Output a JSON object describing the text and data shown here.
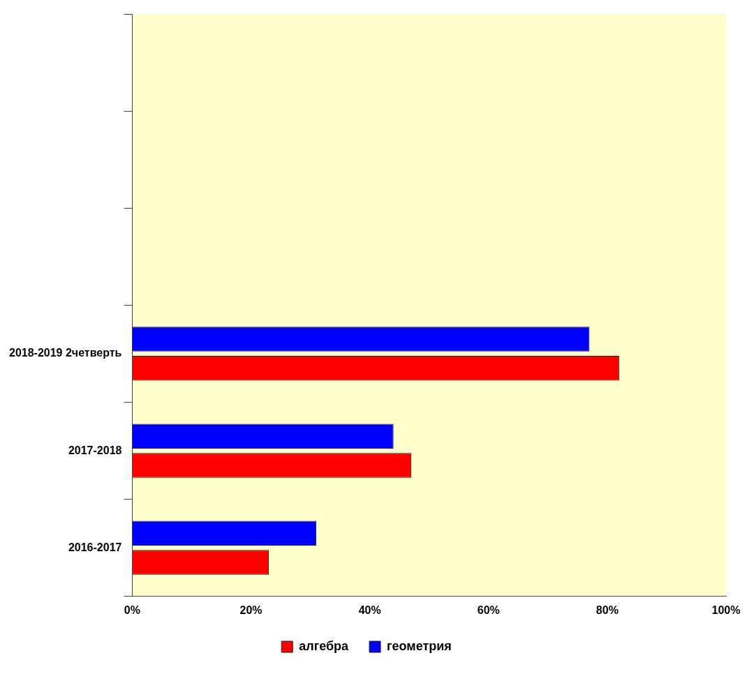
{
  "chart_data": {
    "type": "bar",
    "orientation": "horizontal",
    "categories": [
      null,
      null,
      null,
      "2018-2019 2четверть",
      "2017-2018",
      "2016-2017"
    ],
    "series": [
      {
        "name": "алгебра",
        "color": "#ff0000",
        "values": [
          null,
          null,
          null,
          82,
          47,
          23
        ]
      },
      {
        "name": "геометрия",
        "color": "#0000ff",
        "values": [
          null,
          null,
          null,
          77,
          44,
          31
        ]
      }
    ],
    "xlim": [
      0,
      100
    ],
    "xticks": [
      {
        "value": 0,
        "label": "0%"
      },
      {
        "value": 20,
        "label": "20%"
      },
      {
        "value": 40,
        "label": "40%"
      },
      {
        "value": 60,
        "label": "60%"
      },
      {
        "value": 80,
        "label": "80%"
      },
      {
        "value": 100,
        "label": "100%"
      }
    ],
    "grid": false,
    "legend": "bottom"
  }
}
